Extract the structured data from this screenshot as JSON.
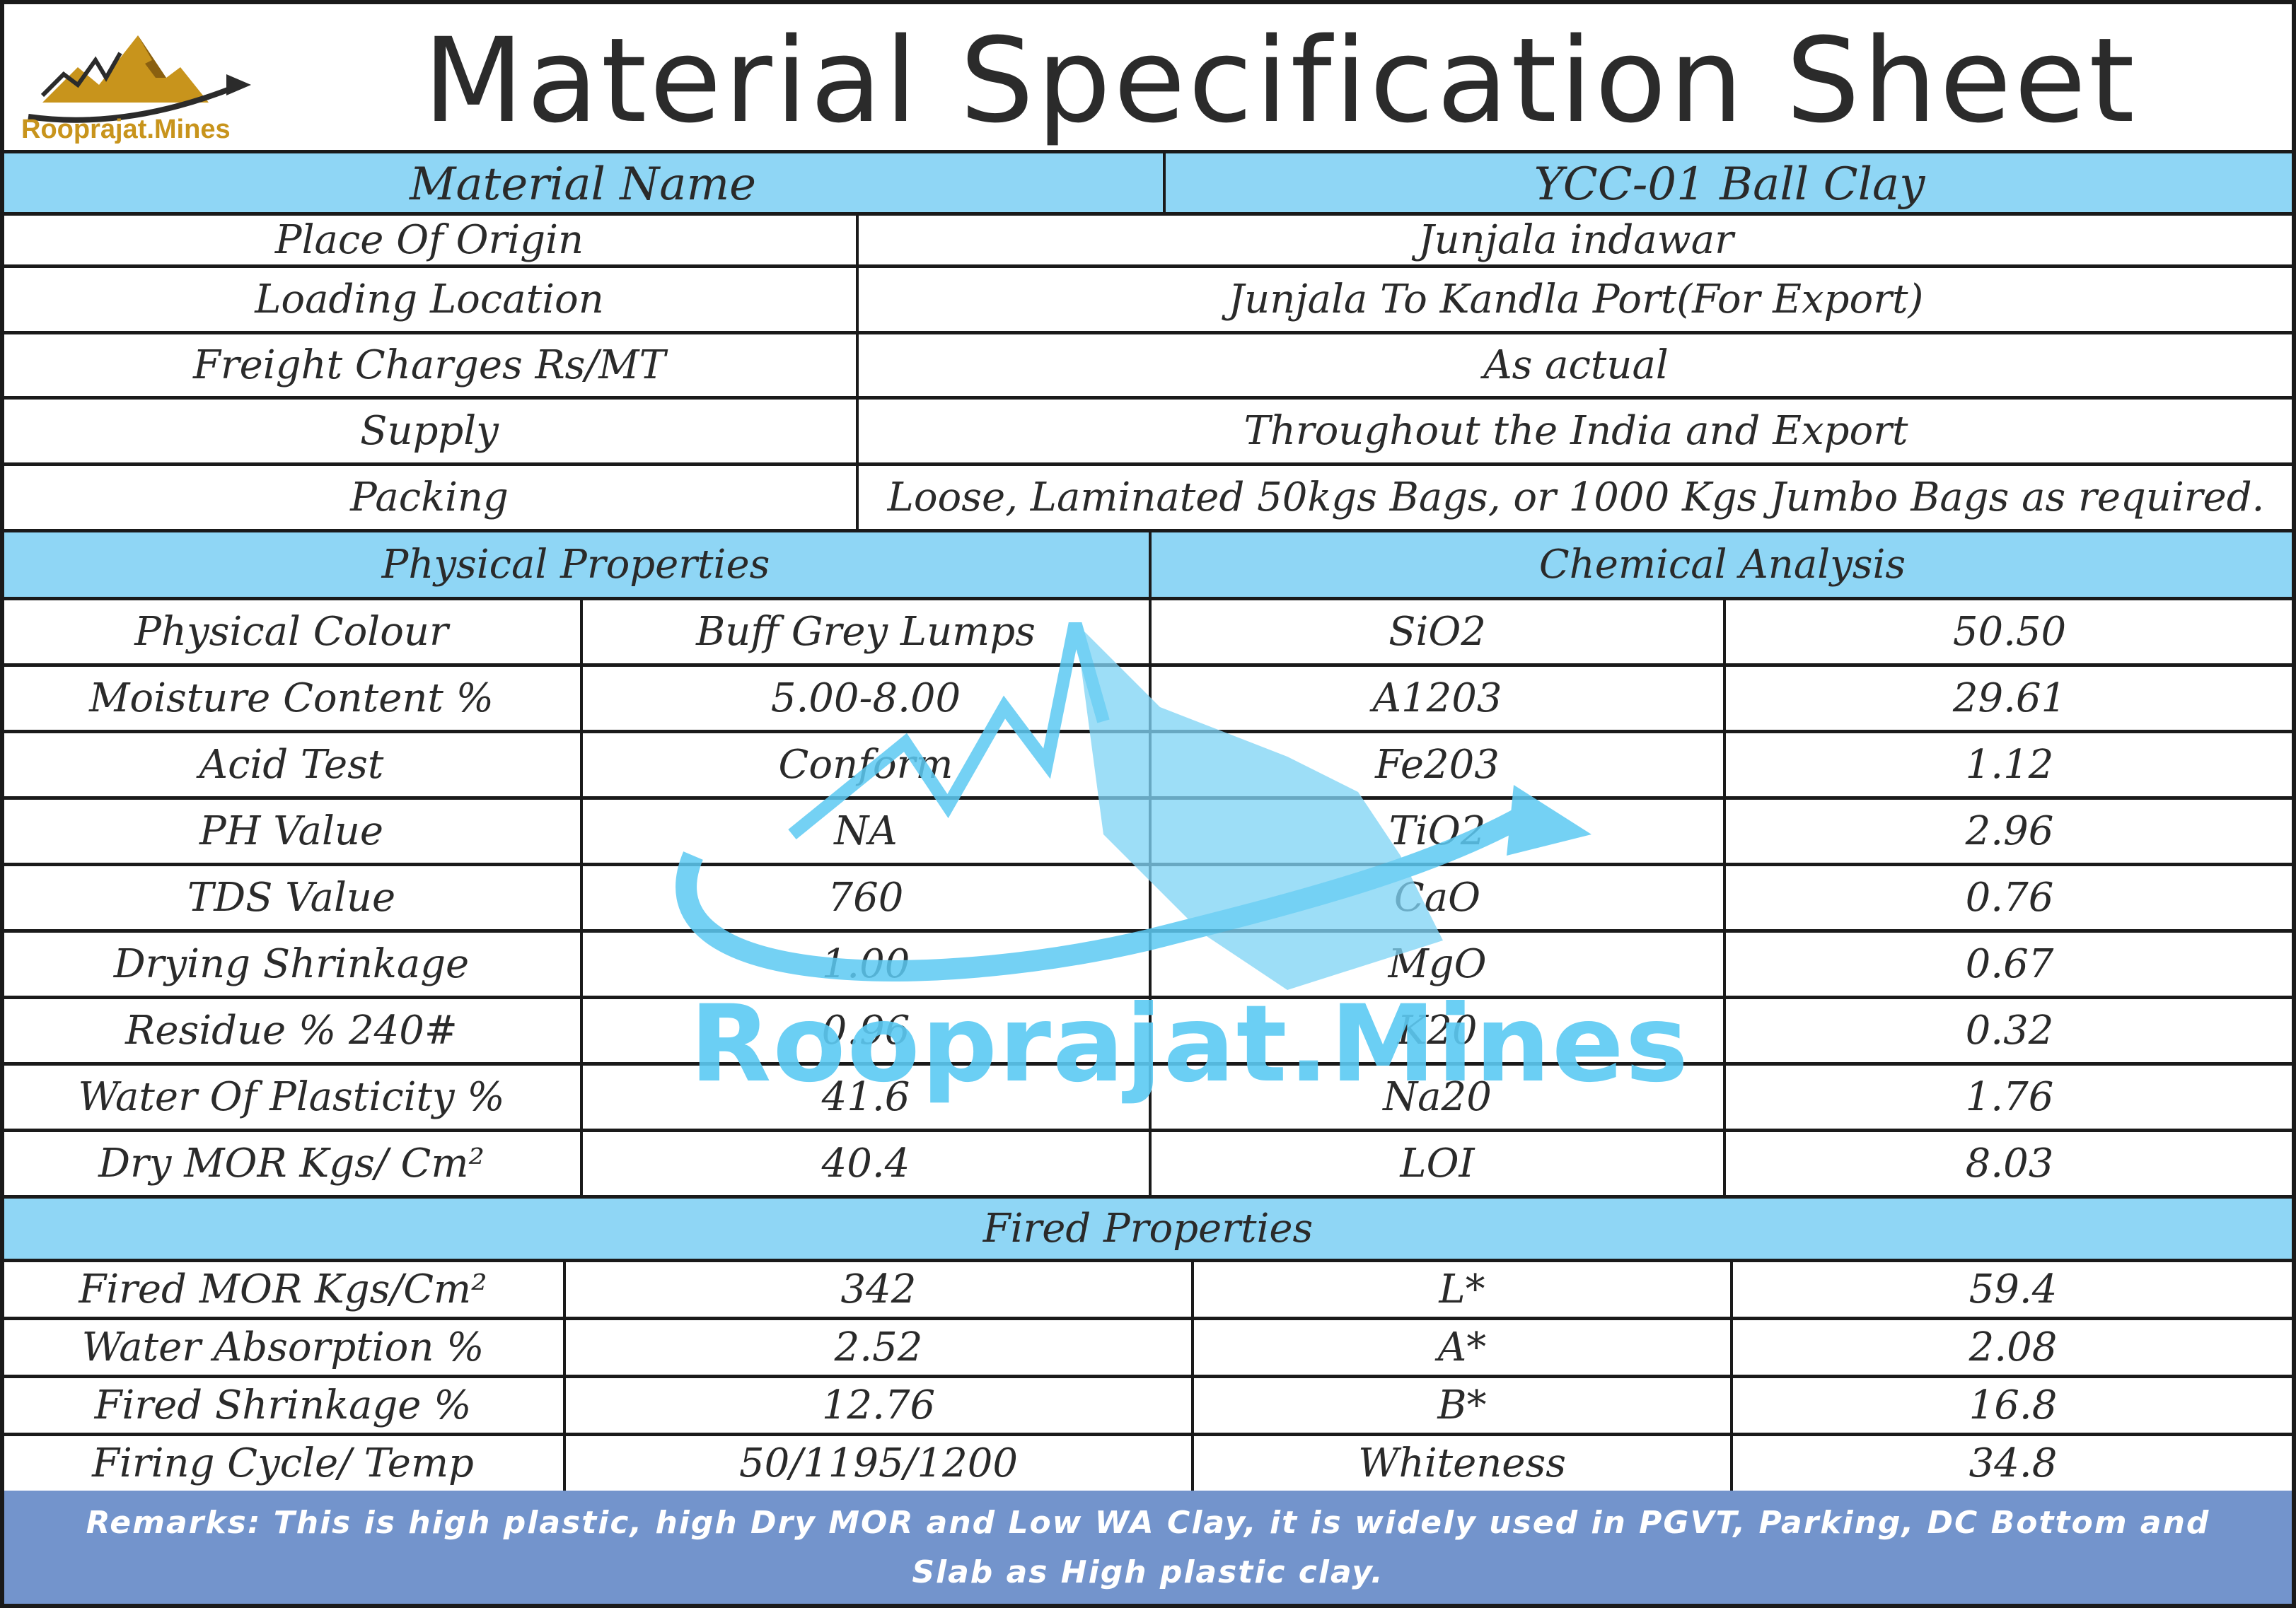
{
  "header": {
    "logo_text": "Rooprajat.Mines",
    "title": "Material Specification Sheet"
  },
  "material": {
    "name_label": "Material Name",
    "name_value": "YCC-01 Ball Clay"
  },
  "info_rows": [
    {
      "label": "Place Of Origin",
      "value": "Junjala indawar"
    },
    {
      "label": "Loading Location",
      "value": "Junjala To Kandla Port(For Export)"
    },
    {
      "label": "Freight Charges Rs/MT",
      "value": "As actual"
    },
    {
      "label": "Supply",
      "value": "Throughout the India and Export"
    },
    {
      "label": "Packing",
      "value": "Loose, Laminated 50kgs Bags, or 1000 Kgs Jumbo Bags as required."
    }
  ],
  "sections": {
    "physical": "Physical Properties",
    "chemical": "Chemical Analysis",
    "fired": "Fired Properties"
  },
  "physical_rows": [
    {
      "label": "Physical Colour",
      "value": "Buff Grey Lumps",
      "chem": "SiO2",
      "chem_value": "50.50"
    },
    {
      "label": "Moisture Content %",
      "value": "5.00-8.00",
      "chem": "A1203",
      "chem_value": "29.61"
    },
    {
      "label": "Acid Test",
      "value": "Conform",
      "chem": "Fe203",
      "chem_value": "1.12"
    },
    {
      "label": "PH Value",
      "value": "NA",
      "chem": "TiO2",
      "chem_value": "2.96"
    },
    {
      "label": "TDS Value",
      "value": "760",
      "chem": "CaO",
      "chem_value": "0.76"
    },
    {
      "label": "Drying Shrinkage",
      "value": "1.00",
      "chem": "MgO",
      "chem_value": "0.67"
    },
    {
      "label": "Residue % 240#",
      "value": "0.96",
      "chem": "K20",
      "chem_value": "0.32"
    },
    {
      "label": "Water Of Plasticity %",
      "value": "41.6",
      "chem": "Na20",
      "chem_value": "1.76"
    },
    {
      "label": "Dry MOR Kgs/ Cm²",
      "value": "40.4",
      "chem": "LOI",
      "chem_value": "8.03"
    }
  ],
  "fired_rows": [
    {
      "label": "Fired MOR Kgs/Cm²",
      "value": "342",
      "prop": "L*",
      "prop_value": "59.4"
    },
    {
      "label": "Water Absorption %",
      "value": "2.52",
      "prop": "A*",
      "prop_value": "2.08"
    },
    {
      "label": "Fired Shrinkage %",
      "value": "12.76",
      "prop": "B*",
      "prop_value": "16.8"
    },
    {
      "label": "Firing Cycle/ Temp",
      "value": "50/1195/1200",
      "prop": "Whiteness",
      "prop_value": "34.8"
    }
  ],
  "watermark_text": "Rooprajat.Mines",
  "remarks": "Remarks: This is high plastic, high Dry MOR and Low WA Clay, it is widely used in PGVT, Parking, DC Bottom and Slab as High plastic clay.",
  "colors": {
    "section_blue": "#8fd6f5",
    "remarks_bg": "#7394cc",
    "logo_gold": "#c8941c",
    "watermark_blue": "#5ccaf3"
  }
}
